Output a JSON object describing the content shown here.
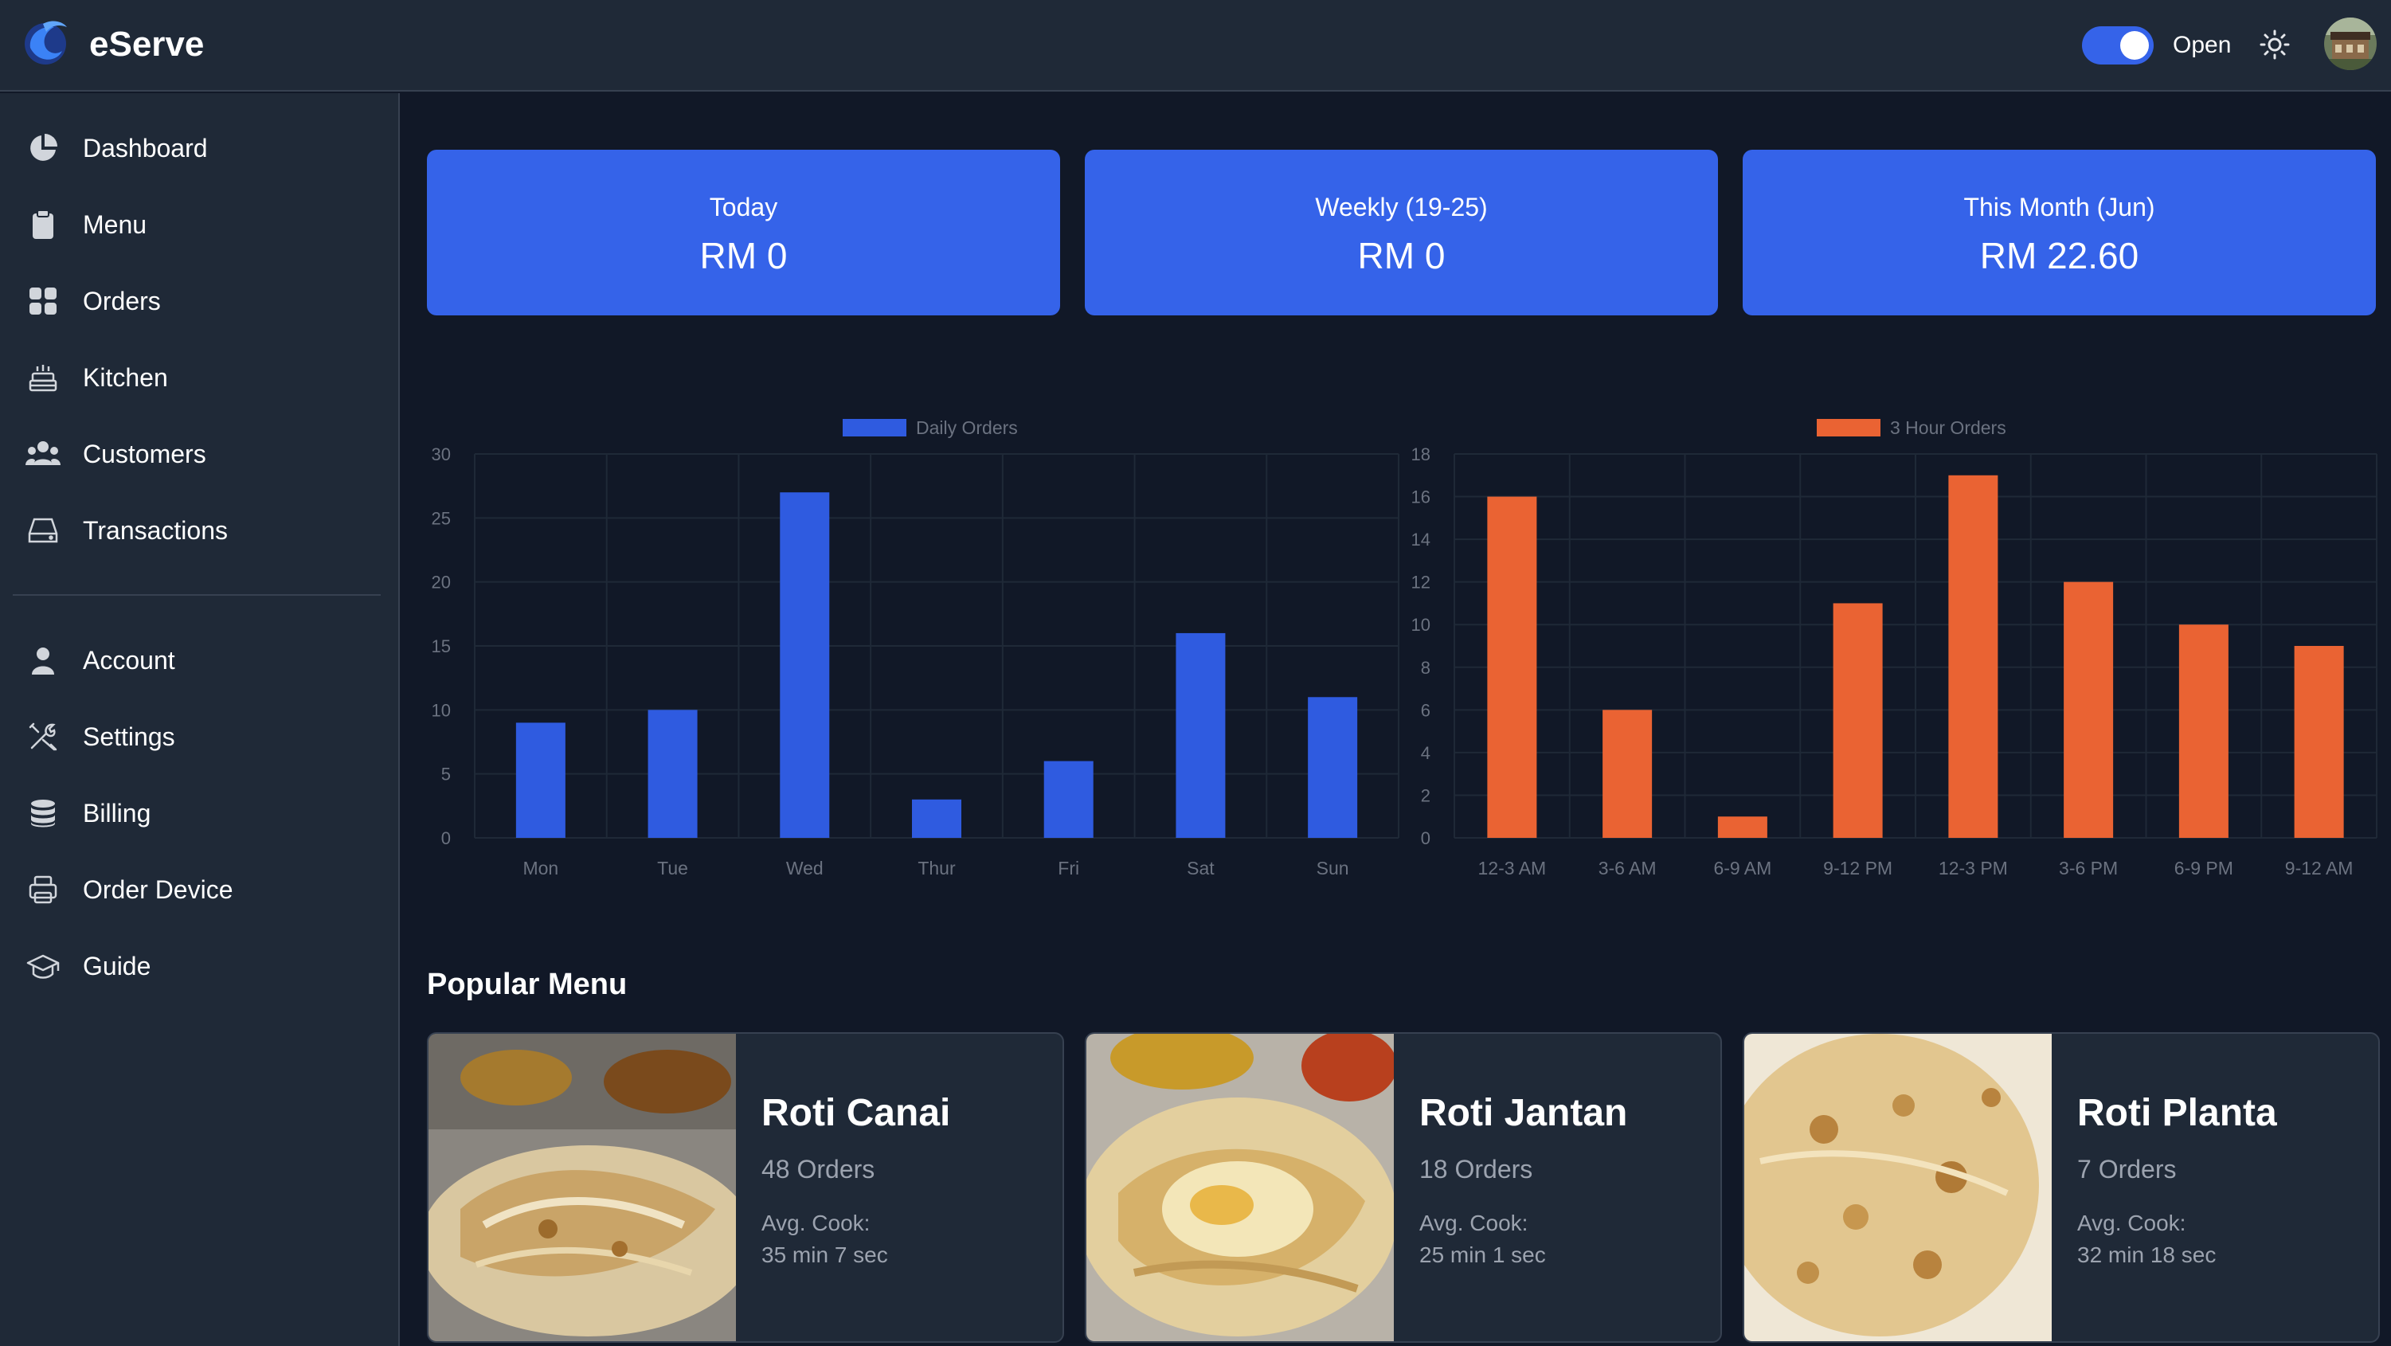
{
  "header": {
    "brand_name": "eServe",
    "status_label": "Open",
    "status_open": true,
    "accent_color": "#3563e9"
  },
  "sidebar": {
    "items": [
      {
        "label": "Dashboard",
        "icon": "pie-chart-icon"
      },
      {
        "label": "Menu",
        "icon": "clipboard-icon"
      },
      {
        "label": "Orders",
        "icon": "grid-icon"
      },
      {
        "label": "Kitchen",
        "icon": "cake-icon"
      },
      {
        "label": "Customers",
        "icon": "users-icon"
      },
      {
        "label": "Transactions",
        "icon": "drive-icon"
      }
    ],
    "secondary_items": [
      {
        "label": "Account",
        "icon": "user-icon"
      },
      {
        "label": "Settings",
        "icon": "tools-icon"
      },
      {
        "label": "Billing",
        "icon": "database-icon"
      },
      {
        "label": "Order Device",
        "icon": "printer-icon"
      },
      {
        "label": "Guide",
        "icon": "graduation-cap-icon"
      }
    ]
  },
  "stats": [
    {
      "label": "Today",
      "value": "RM 0"
    },
    {
      "label": "Weekly (19-25)",
      "value": "RM 0"
    },
    {
      "label": "This Month (Jun)",
      "value": "RM 22.60"
    }
  ],
  "chart_data": [
    {
      "type": "bar",
      "legend": "Daily Orders",
      "color": "#2f5be0",
      "categories": [
        "Mon",
        "Tue",
        "Wed",
        "Thur",
        "Fri",
        "Sat",
        "Sun"
      ],
      "values": [
        9,
        10,
        27,
        3,
        6,
        16,
        11
      ],
      "ylim": [
        0,
        30
      ],
      "yticks": [
        0,
        5,
        10,
        15,
        20,
        25,
        30
      ],
      "grid": true,
      "legend_position": "top"
    },
    {
      "type": "bar",
      "legend": "3 Hour Orders",
      "color": "#ea6333",
      "categories": [
        "12-3 AM",
        "3-6 AM",
        "6-9 AM",
        "9-12 PM",
        "12-3 PM",
        "3-6 PM",
        "6-9 PM",
        "9-12 AM"
      ],
      "values": [
        16,
        6,
        1,
        11,
        17,
        12,
        10,
        9
      ],
      "ylim": [
        0,
        18
      ],
      "yticks": [
        0,
        2,
        4,
        6,
        8,
        10,
        12,
        14,
        16,
        18
      ],
      "grid": true,
      "legend_position": "top"
    }
  ],
  "popular_menu": {
    "title": "Popular Menu",
    "items": [
      {
        "name": "Roti Canai",
        "orders": "48 Orders",
        "cook_label": "Avg. Cook:",
        "cook_value": "35 min 7 sec"
      },
      {
        "name": "Roti Jantan",
        "orders": "18 Orders",
        "cook_label": "Avg. Cook:",
        "cook_value": "25 min 1 sec"
      },
      {
        "name": "Roti Planta",
        "orders": "7 Orders",
        "cook_label": "Avg. Cook:",
        "cook_value": "32 min 18 sec"
      }
    ]
  }
}
